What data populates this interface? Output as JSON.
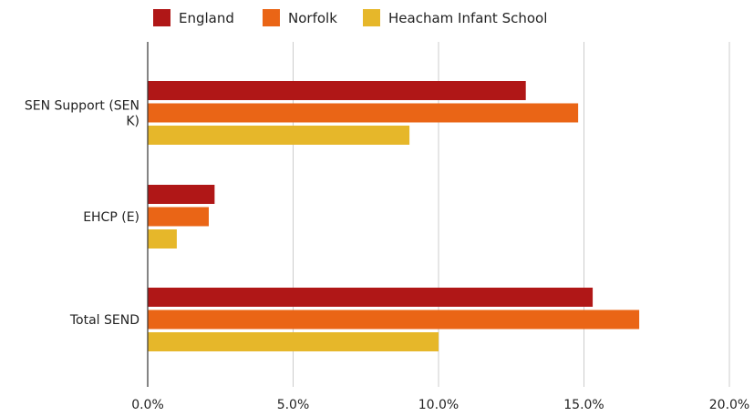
{
  "chart_data": {
    "type": "bar",
    "orientation": "horizontal",
    "categories": [
      "SEN Support (SEN K)",
      "EHCP (E)",
      "Total SEND"
    ],
    "category_label_lines": [
      [
        "SEN Support (SEN",
        "K)"
      ],
      [
        "EHCP (E)"
      ],
      [
        "Total SEND"
      ]
    ],
    "series": [
      {
        "name": "England",
        "color": "#b01717",
        "values": [
          13.0,
          2.3,
          15.3
        ]
      },
      {
        "name": "Norfolk",
        "color": "#ea6516",
        "values": [
          14.8,
          2.1,
          16.9
        ]
      },
      {
        "name": "Heacham Infant School",
        "color": "#e6b72a",
        "values": [
          9.0,
          1.0,
          10.0
        ]
      }
    ],
    "xlim": [
      0,
      20
    ],
    "x_ticks": [
      "0.0%",
      "5.0%",
      "10.0%",
      "15.0%",
      "20.0%"
    ],
    "x_tick_values": [
      0,
      5,
      10,
      15,
      20
    ],
    "title": "",
    "xlabel": "",
    "ylabel": "",
    "grid": true,
    "legend_position": "top"
  }
}
